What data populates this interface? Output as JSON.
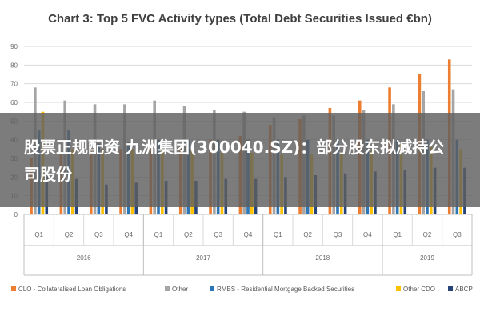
{
  "overlay": {
    "headline": "股票正规配资 九洲集团(300040.SZ)：部分股东拟减持公司股份"
  },
  "chart_data": {
    "type": "bar",
    "title": "Chart 3: Top 5 FVC Activity types (Total Debt Securities Issued €bn)",
    "xlabel": "",
    "ylabel": "",
    "ylim": [
      0,
      90
    ],
    "yticks": [
      0,
      10,
      20,
      30,
      40,
      50,
      60,
      70,
      80,
      90
    ],
    "grid": true,
    "legend_position": "bottom",
    "categories": [
      "Q1",
      "Q2",
      "Q3",
      "Q4",
      "Q1",
      "Q2",
      "Q3",
      "Q4",
      "Q1",
      "Q2",
      "Q3",
      "Q4",
      "Q1",
      "Q2",
      "Q3"
    ],
    "groups": [
      {
        "label": "2016",
        "count": 4
      },
      {
        "label": "2017",
        "count": 4
      },
      {
        "label": "2018",
        "count": 4
      },
      {
        "label": "2019",
        "count": 3
      }
    ],
    "series": [
      {
        "name": "CLO - Collateralised Loan Obligations",
        "color": "#ed7d31",
        "values": [
          30,
          32,
          34,
          35,
          36,
          38,
          40,
          42,
          48,
          51,
          57,
          61,
          68,
          75,
          83
        ]
      },
      {
        "name": "Other",
        "color": "#a5a5a5",
        "values": [
          68,
          61,
          59,
          59,
          61,
          58,
          56,
          55,
          52,
          53,
          53,
          56,
          59,
          66,
          67
        ]
      },
      {
        "name": "RMBS - Residential Mortgage Backed Securities",
        "color": "#2e75b6",
        "values": [
          45,
          45,
          38,
          39,
          40,
          40,
          40,
          40,
          40,
          40,
          40,
          40,
          40,
          40,
          40
        ]
      },
      {
        "name": "Other CDO",
        "color": "#ffc000",
        "values": [
          55,
          35,
          35,
          35,
          35,
          35,
          33,
          33,
          32,
          32,
          33,
          34,
          38,
          36,
          35
        ]
      },
      {
        "name": "ABCP",
        "color": "#264478",
        "values": [
          21,
          19,
          16,
          17,
          18,
          18,
          19,
          19,
          20,
          21,
          22,
          23,
          24,
          25,
          25
        ]
      }
    ]
  }
}
